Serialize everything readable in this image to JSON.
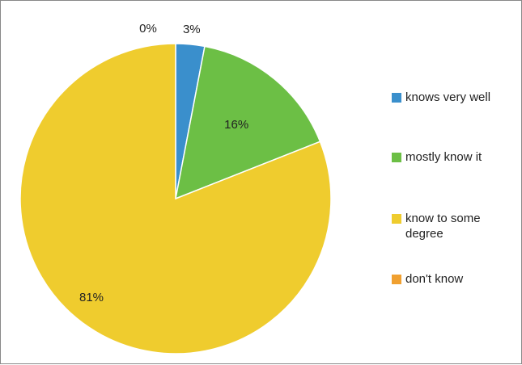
{
  "chart_data": {
    "type": "pie",
    "start_angle_deg": 0,
    "direction": "clockwise",
    "slices": [
      {
        "label": "knows very well",
        "value": 3,
        "display": "3%",
        "color": "#3a8fcc"
      },
      {
        "label": "mostly know it",
        "value": 16,
        "display": "16%",
        "color": "#6cbf45"
      },
      {
        "label": "know to some degree",
        "value": 81,
        "display": "81%",
        "color": "#efcc2e"
      },
      {
        "label": "don't know",
        "value": 0,
        "display": "0%",
        "color": "#f0a030"
      }
    ],
    "legend": {
      "placement": "right",
      "items": [
        {
          "label": "knows very well",
          "color": "#3a8fcc"
        },
        {
          "label": "mostly know it",
          "color": "#6cbf45"
        },
        {
          "label": "know to some degree",
          "color": "#efcc2e"
        },
        {
          "label": "don't know",
          "color": "#f0a030"
        }
      ]
    }
  }
}
